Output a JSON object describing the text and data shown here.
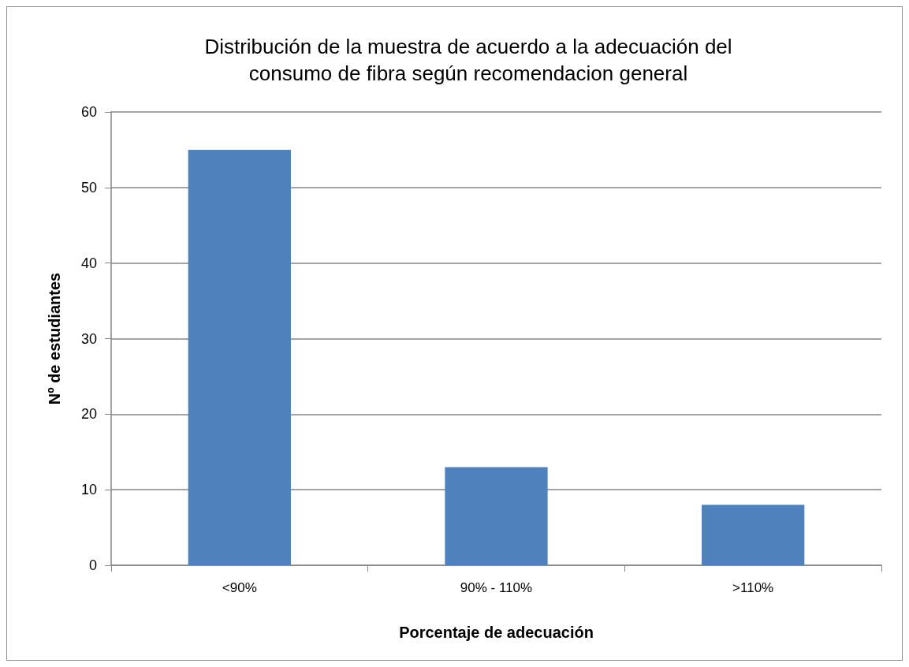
{
  "chart_data": {
    "type": "bar",
    "title": "Distribución de la muestra de acuerdo a la adecuación del\nconsumo de fibra según recomendacion general",
    "xlabel": "Porcentaje de adecuación",
    "ylabel": "Nº de estudiantes",
    "categories": [
      "<90%",
      "90% - 110%",
      ">110%"
    ],
    "values": [
      55,
      13,
      8
    ],
    "color": "#4f81bd",
    "ylim": [
      0,
      60
    ],
    "yticks": [
      0,
      10,
      20,
      30,
      40,
      50,
      60
    ],
    "grid": "y"
  }
}
